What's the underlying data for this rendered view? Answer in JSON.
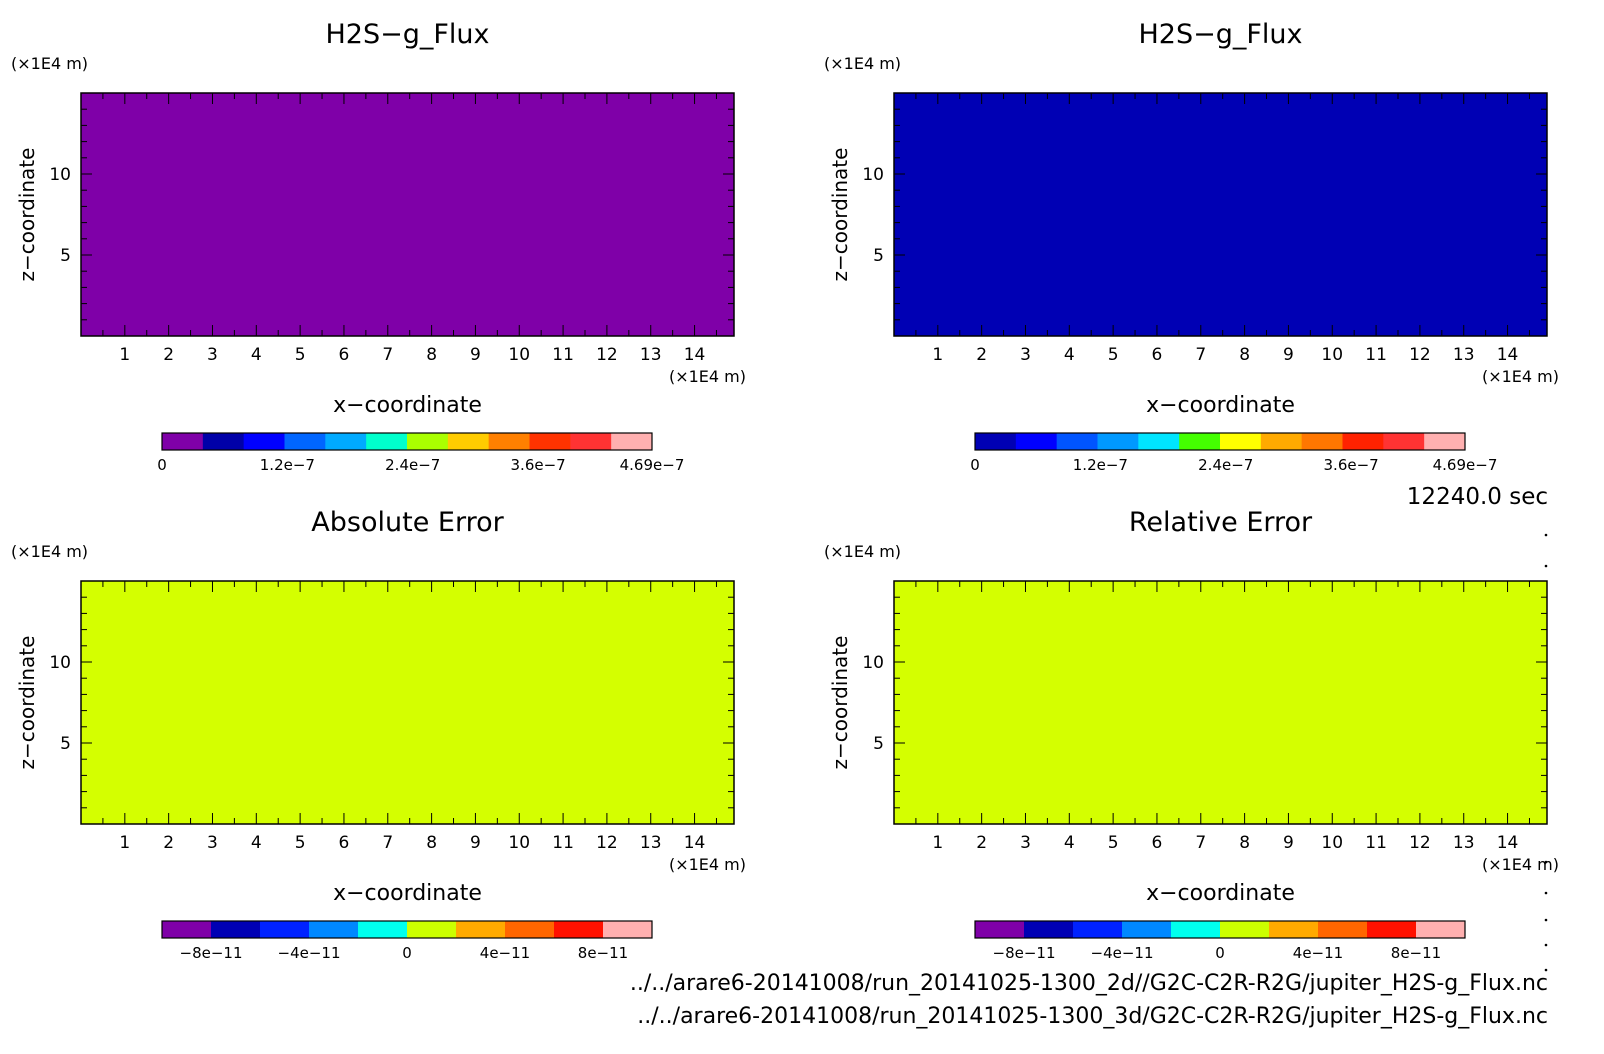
{
  "time_label": "12240.0 sec",
  "files": [
    "../../arare6-20141008/run_20141025-1300_2d//G2C-C2R-R2G/jupiter_H2S-g_Flux.nc",
    "../../arare6-20141008/run_20141025-1300_3d/G2C-C2R-R2G/jupiter_H2S-g_Flux.nc"
  ],
  "chart_data": [
    {
      "type": "heatmap",
      "title": "H2S−g_Flux",
      "xlabel": "x−coordinate",
      "ylabel": "z−coordinate",
      "x_unit": "(×1E4 m)",
      "y_unit": "(×1E4 m)",
      "xlim": [
        0,
        14.9
      ],
      "ylim": [
        0,
        15
      ],
      "x_ticks": [
        "1",
        "2",
        "3",
        "4",
        "5",
        "6",
        "7",
        "8",
        "9",
        "10",
        "11",
        "12",
        "13",
        "14"
      ],
      "y_ticks": [
        "5",
        "10"
      ],
      "field_value": 0,
      "fill_color": "#7f00a8",
      "colorbar": {
        "colors": [
          "#7f00a8",
          "#0000a8",
          "#0000ff",
          "#0066ff",
          "#00aaff",
          "#00ffcc",
          "#aaff00",
          "#ffcc00",
          "#ff8000",
          "#ff3300",
          "#ff3333",
          "#ffb0b0"
        ],
        "tick_labels": [
          "0",
          "1.2e−7",
          "2.4e−7",
          "3.6e−7",
          "4.69e−7"
        ],
        "tick_values": [
          0,
          1.2e-07,
          2.4e-07,
          3.6e-07,
          4.69e-07
        ],
        "range": [
          0,
          4.69e-07
        ]
      }
    },
    {
      "type": "heatmap",
      "title": "H2S−g_Flux",
      "xlabel": "x−coordinate",
      "ylabel": "z−coordinate",
      "x_unit": "(×1E4 m)",
      "y_unit": "(×1E4 m)",
      "xlim": [
        0,
        14.9
      ],
      "ylim": [
        0,
        15
      ],
      "x_ticks": [
        "1",
        "2",
        "3",
        "4",
        "5",
        "6",
        "7",
        "8",
        "9",
        "10",
        "11",
        "12",
        "13",
        "14"
      ],
      "y_ticks": [
        "5",
        "10"
      ],
      "field_value": 0,
      "fill_color": "#0000b4",
      "colorbar": {
        "colors": [
          "#0000b4",
          "#0000ff",
          "#0055ff",
          "#0099ff",
          "#00e5ff",
          "#44ff00",
          "#ffff00",
          "#ffaa00",
          "#ff7700",
          "#ff2200",
          "#ff3333",
          "#ffb0b0"
        ],
        "tick_labels": [
          "0",
          "1.2e−7",
          "2.4e−7",
          "3.6e−7",
          "4.69e−7"
        ],
        "tick_values": [
          0,
          1.2e-07,
          2.4e-07,
          3.6e-07,
          4.69e-07
        ],
        "range": [
          0,
          4.69e-07
        ]
      }
    },
    {
      "type": "heatmap",
      "title": "Absolute Error",
      "xlabel": "x−coordinate",
      "ylabel": "z−coordinate",
      "x_unit": "(×1E4 m)",
      "y_unit": "(×1E4 m)",
      "xlim": [
        0,
        14.9
      ],
      "ylim": [
        0,
        15
      ],
      "x_ticks": [
        "1",
        "2",
        "3",
        "4",
        "5",
        "6",
        "7",
        "8",
        "9",
        "10",
        "11",
        "12",
        "13",
        "14"
      ],
      "y_ticks": [
        "5",
        "10"
      ],
      "field_value": 0,
      "fill_color": "#d4ff00",
      "colorbar": {
        "colors": [
          "#7f00a8",
          "#0000b4",
          "#0022ff",
          "#0088ff",
          "#00ffee",
          "#ccff00",
          "#ffaa00",
          "#ff6600",
          "#ff1100",
          "#ffb0b0"
        ],
        "tick_labels": [
          "−8e−11",
          "−4e−11",
          "0",
          "4e−11",
          "8e−11"
        ],
        "tick_values": [
          -8e-11,
          -4e-11,
          0,
          4e-11,
          8e-11
        ],
        "range": [
          -1e-10,
          1e-10
        ]
      }
    },
    {
      "type": "heatmap",
      "title": "Relative Error",
      "xlabel": "x−coordinate",
      "ylabel": "z−coordinate",
      "x_unit": "(×1E4 m)",
      "y_unit": "(×1E4 m)",
      "xlim": [
        0,
        14.9
      ],
      "ylim": [
        0,
        15
      ],
      "x_ticks": [
        "1",
        "2",
        "3",
        "4",
        "5",
        "6",
        "7",
        "8",
        "9",
        "10",
        "11",
        "12",
        "13",
        "14"
      ],
      "y_ticks": [
        "5",
        "10"
      ],
      "field_value": 0,
      "fill_color": "#d4ff00",
      "colorbar": {
        "colors": [
          "#7f00a8",
          "#0000b4",
          "#0022ff",
          "#0088ff",
          "#00ffee",
          "#ccff00",
          "#ffaa00",
          "#ff6600",
          "#ff1100",
          "#ffb0b0"
        ],
        "tick_labels": [
          "−8e−11",
          "−4e−11",
          "0",
          "4e−11",
          "8e−11"
        ],
        "tick_values": [
          -8e-11,
          -4e-11,
          0,
          4e-11,
          8e-11
        ],
        "range": [
          -1e-10,
          1e-10
        ]
      }
    }
  ]
}
